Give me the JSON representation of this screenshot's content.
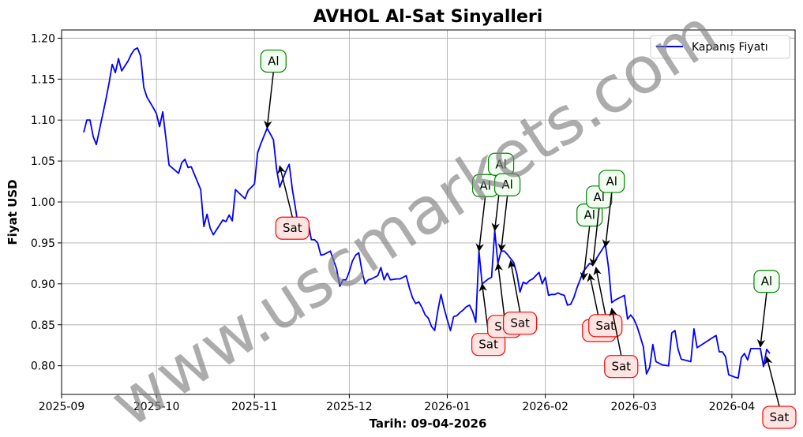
{
  "watermark": "www.uscmarkets.com",
  "chart_data": {
    "type": "line",
    "title": "AVHOL Al-Sat Sinyalleri",
    "xlabel": "Tarih: 09-04-2026",
    "ylabel": "Fiyat USD",
    "xlim": [
      "2025-09-01",
      "2026-04-21"
    ],
    "ylim": [
      0.765,
      1.21
    ],
    "x_ticks": [
      "2025-09",
      "2025-10",
      "2025-11",
      "2025-12",
      "2026-01",
      "2026-02",
      "2026-03",
      "2026-04"
    ],
    "x_tick_dates": [
      "2025-09-01",
      "2025-10-01",
      "2025-11-01",
      "2025-12-01",
      "2026-01-01",
      "2026-02-01",
      "2026-03-01",
      "2026-04-01"
    ],
    "y_ticks": [
      0.8,
      0.85,
      0.9,
      0.95,
      1.0,
      1.05,
      1.1,
      1.15,
      1.2
    ],
    "y_tick_labels": [
      "0.80",
      "0.85",
      "0.90",
      "0.95",
      "1.00",
      "1.05",
      "1.10",
      "1.15",
      "1.20"
    ],
    "grid": true,
    "legend_position": "top-right",
    "series": [
      {
        "name": "Kapanış Fiyatı",
        "color": "#0000ff",
        "points": [
          [
            "2025-09-08",
            1.085
          ],
          [
            "2025-09-09",
            1.1
          ],
          [
            "2025-09-10",
            1.1
          ],
          [
            "2025-09-11",
            1.08
          ],
          [
            "2025-09-12",
            1.07
          ],
          [
            "2025-09-15",
            1.125
          ],
          [
            "2025-09-16",
            1.145
          ],
          [
            "2025-09-17",
            1.168
          ],
          [
            "2025-09-18",
            1.158
          ],
          [
            "2025-09-19",
            1.175
          ],
          [
            "2025-09-20",
            1.16
          ],
          [
            "2025-09-22",
            1.172
          ],
          [
            "2025-09-23",
            1.18
          ],
          [
            "2025-09-24",
            1.186
          ],
          [
            "2025-09-25",
            1.188
          ],
          [
            "2025-09-26",
            1.178
          ],
          [
            "2025-09-27",
            1.14
          ],
          [
            "2025-09-28",
            1.128
          ],
          [
            "2025-09-30",
            1.115
          ],
          [
            "2025-10-01",
            1.108
          ],
          [
            "2025-10-02",
            1.092
          ],
          [
            "2025-10-03",
            1.11
          ],
          [
            "2025-10-04",
            1.078
          ],
          [
            "2025-10-05",
            1.045
          ],
          [
            "2025-10-08",
            1.035
          ],
          [
            "2025-10-09",
            1.048
          ],
          [
            "2025-10-10",
            1.052
          ],
          [
            "2025-10-11",
            1.042
          ],
          [
            "2025-10-12",
            1.043
          ],
          [
            "2025-10-15",
            1.015
          ],
          [
            "2025-10-16",
            0.97
          ],
          [
            "2025-10-17",
            0.985
          ],
          [
            "2025-10-18",
            0.968
          ],
          [
            "2025-10-19",
            0.96
          ],
          [
            "2025-10-21",
            0.972
          ],
          [
            "2025-10-22",
            0.978
          ],
          [
            "2025-10-23",
            0.976
          ],
          [
            "2025-10-24",
            0.984
          ],
          [
            "2025-10-25",
            0.977
          ],
          [
            "2025-10-26",
            1.015
          ],
          [
            "2025-10-29",
            1.004
          ],
          [
            "2025-10-30",
            1.014
          ],
          [
            "2025-11-01",
            1.022
          ],
          [
            "2025-11-02",
            1.06
          ],
          [
            "2025-11-03",
            1.071
          ],
          [
            "2025-11-05",
            1.09
          ],
          [
            "2025-11-07",
            1.076
          ],
          [
            "2025-11-08",
            1.04
          ],
          [
            "2025-11-09",
            1.018
          ],
          [
            "2025-11-11",
            1.038
          ],
          [
            "2025-11-12",
            1.046
          ],
          [
            "2025-11-13",
            1.015
          ],
          [
            "2025-11-14",
            0.992
          ],
          [
            "2025-11-15",
            0.966
          ],
          [
            "2025-11-17",
            0.972
          ],
          [
            "2025-11-18",
            0.975
          ],
          [
            "2025-11-19",
            0.954
          ],
          [
            "2025-11-20",
            0.954
          ],
          [
            "2025-11-21",
            0.95
          ],
          [
            "2025-11-22",
            0.935
          ],
          [
            "2025-11-23",
            0.936
          ],
          [
            "2025-11-24",
            0.938
          ],
          [
            "2025-11-25",
            0.94
          ],
          [
            "2025-11-27",
            0.918
          ],
          [
            "2025-11-28",
            0.897
          ],
          [
            "2025-11-29",
            0.905
          ],
          [
            "2025-11-30",
            0.905
          ],
          [
            "2025-12-01",
            0.915
          ],
          [
            "2025-12-02",
            0.928
          ],
          [
            "2025-12-03",
            0.935
          ],
          [
            "2025-12-04",
            0.938
          ],
          [
            "2025-12-05",
            0.916
          ],
          [
            "2025-12-06",
            0.9
          ],
          [
            "2025-12-07",
            0.905
          ],
          [
            "2025-12-08",
            0.906
          ],
          [
            "2025-12-10",
            0.91
          ],
          [
            "2025-12-11",
            0.92
          ],
          [
            "2025-12-12",
            0.905
          ],
          [
            "2025-12-13",
            0.913
          ],
          [
            "2025-12-14",
            0.905
          ],
          [
            "2025-12-16",
            0.906
          ],
          [
            "2025-12-17",
            0.906
          ],
          [
            "2025-12-19",
            0.91
          ],
          [
            "2025-12-20",
            0.895
          ],
          [
            "2025-12-21",
            0.883
          ],
          [
            "2025-12-22",
            0.876
          ],
          [
            "2025-12-23",
            0.878
          ],
          [
            "2025-12-24",
            0.871
          ],
          [
            "2025-12-25",
            0.862
          ],
          [
            "2025-12-26",
            0.858
          ],
          [
            "2025-12-27",
            0.848
          ],
          [
            "2025-12-28",
            0.843
          ],
          [
            "2025-12-29",
            0.867
          ],
          [
            "2025-12-30",
            0.887
          ],
          [
            "2025-12-31",
            0.87
          ],
          [
            "2026-01-01",
            0.856
          ],
          [
            "2026-01-02",
            0.843
          ],
          [
            "2026-01-03",
            0.86
          ],
          [
            "2026-01-04",
            0.861
          ],
          [
            "2026-01-05",
            0.865
          ],
          [
            "2026-01-06",
            0.868
          ],
          [
            "2026-01-07",
            0.872
          ],
          [
            "2026-01-08",
            0.874
          ],
          [
            "2026-01-09",
            0.866
          ],
          [
            "2026-01-10",
            0.853
          ],
          [
            "2026-01-11",
            0.94
          ],
          [
            "2026-01-12",
            0.9
          ],
          [
            "2026-01-13",
            0.903
          ],
          [
            "2026-01-14",
            0.906
          ],
          [
            "2026-01-15",
            0.908
          ],
          [
            "2026-01-16",
            0.965
          ],
          [
            "2026-01-17",
            0.925
          ],
          [
            "2026-01-18",
            0.94
          ],
          [
            "2026-01-19",
            0.94
          ],
          [
            "2026-01-20",
            0.936
          ],
          [
            "2026-01-21",
            0.931
          ],
          [
            "2026-01-22",
            0.926
          ],
          [
            "2026-01-23",
            0.912
          ],
          [
            "2026-01-24",
            0.89
          ],
          [
            "2026-01-25",
            0.902
          ],
          [
            "2026-01-26",
            0.9
          ],
          [
            "2026-01-27",
            0.904
          ],
          [
            "2026-01-28",
            0.906
          ],
          [
            "2026-01-29",
            0.91
          ],
          [
            "2026-01-30",
            0.914
          ],
          [
            "2026-01-31",
            0.9
          ],
          [
            "2026-02-01",
            0.908
          ],
          [
            "2026-02-02",
            0.886
          ],
          [
            "2026-02-03",
            0.887
          ],
          [
            "2026-02-04",
            0.887
          ],
          [
            "2026-02-05",
            0.889
          ],
          [
            "2026-02-06",
            0.887
          ],
          [
            "2026-02-07",
            0.886
          ],
          [
            "2026-02-08",
            0.874
          ],
          [
            "2026-02-09",
            0.875
          ],
          [
            "2026-02-10",
            0.883
          ],
          [
            "2026-02-11",
            0.895
          ],
          [
            "2026-02-12",
            0.905
          ],
          [
            "2026-02-13",
            0.915
          ],
          [
            "2026-02-14",
            0.92
          ],
          [
            "2026-02-15",
            0.925
          ],
          [
            "2026-02-16",
            0.923
          ],
          [
            "2026-02-17",
            0.93
          ],
          [
            "2026-02-18",
            0.936
          ],
          [
            "2026-02-19",
            0.942
          ],
          [
            "2026-02-20",
            0.948
          ],
          [
            "2026-02-21",
            0.92
          ],
          [
            "2026-02-22",
            0.877
          ],
          [
            "2026-02-23",
            0.88
          ],
          [
            "2026-02-24",
            0.882
          ],
          [
            "2026-02-25",
            0.884
          ],
          [
            "2026-02-26",
            0.886
          ],
          [
            "2026-02-27",
            0.857
          ],
          [
            "2026-02-28",
            0.862
          ],
          [
            "2026-03-01",
            0.857
          ],
          [
            "2026-03-02",
            0.848
          ],
          [
            "2026-03-03",
            0.836
          ],
          [
            "2026-03-04",
            0.823
          ],
          [
            "2026-03-05",
            0.79
          ],
          [
            "2026-03-06",
            0.798
          ],
          [
            "2026-03-07",
            0.826
          ],
          [
            "2026-03-08",
            0.805
          ],
          [
            "2026-03-10",
            0.801
          ],
          [
            "2026-03-12",
            0.8
          ],
          [
            "2026-03-13",
            0.84
          ],
          [
            "2026-03-14",
            0.843
          ],
          [
            "2026-03-15",
            0.82
          ],
          [
            "2026-03-16",
            0.808
          ],
          [
            "2026-03-18",
            0.806
          ],
          [
            "2026-03-19",
            0.805
          ],
          [
            "2026-03-20",
            0.845
          ],
          [
            "2026-03-21",
            0.822
          ],
          [
            "2026-03-23",
            0.827
          ],
          [
            "2026-03-25",
            0.832
          ],
          [
            "2026-03-27",
            0.837
          ],
          [
            "2026-03-28",
            0.817
          ],
          [
            "2026-03-29",
            0.817
          ],
          [
            "2026-03-30",
            0.811
          ],
          [
            "2026-03-31",
            0.789
          ],
          [
            "2026-04-02",
            0.786
          ],
          [
            "2026-04-03",
            0.785
          ],
          [
            "2026-04-04",
            0.81
          ],
          [
            "2026-04-05",
            0.815
          ],
          [
            "2026-04-06",
            0.807
          ],
          [
            "2026-04-07",
            0.821
          ],
          [
            "2026-04-08",
            0.821
          ],
          [
            "2026-04-09",
            0.821
          ],
          [
            "2026-04-10",
            0.821
          ],
          [
            "2026-04-11",
            0.799
          ],
          [
            "2026-04-12",
            0.82
          ],
          [
            "2026-04-13",
            0.815
          ]
        ]
      }
    ],
    "annotations": [
      {
        "label": "Al",
        "type": "buy",
        "point": [
          "2025-11-05",
          1.09
        ],
        "label_pos": [
          "2025-11-07",
          1.172
        ]
      },
      {
        "label": "Sat",
        "type": "sell",
        "point": [
          "2025-11-09",
          1.044
        ],
        "label_pos": [
          "2025-11-13",
          0.968
        ]
      },
      {
        "label": "Al",
        "type": "buy",
        "point": [
          "2026-01-11",
          0.94
        ],
        "label_pos": [
          "2026-01-13",
          1.02
        ]
      },
      {
        "label": "Al",
        "type": "buy",
        "point": [
          "2026-01-16",
          0.965
        ],
        "label_pos": [
          "2026-01-18",
          1.046
        ]
      },
      {
        "label": "Al",
        "type": "buy",
        "point": [
          "2026-01-18",
          0.94
        ],
        "label_pos": [
          "2026-01-20",
          1.021
        ]
      },
      {
        "label": "Sat",
        "type": "sell",
        "point": [
          "2026-01-12",
          0.9
        ],
        "label_pos": [
          "2026-01-14",
          0.826
        ]
      },
      {
        "label": "Sat",
        "type": "sell",
        "point": [
          "2026-01-17",
          0.925
        ],
        "label_pos": [
          "2026-01-19",
          0.848
        ]
      },
      {
        "label": "Sat",
        "type": "sell",
        "point": [
          "2026-01-21",
          0.928
        ],
        "label_pos": [
          "2026-01-24",
          0.852
        ]
      },
      {
        "label": "Al",
        "type": "buy",
        "point": [
          "2026-02-13",
          0.905
        ],
        "label_pos": [
          "2026-02-15",
          0.984
        ]
      },
      {
        "label": "Al",
        "type": "buy",
        "point": [
          "2026-02-16",
          0.922
        ],
        "label_pos": [
          "2026-02-18",
          1.006
        ]
      },
      {
        "label": "Al",
        "type": "buy",
        "point": [
          "2026-02-20",
          0.945
        ],
        "label_pos": [
          "2026-02-22",
          1.025
        ]
      },
      {
        "label": "Sat",
        "type": "sell",
        "point": [
          "2026-02-15",
          0.912
        ],
        "label_pos": [
          "2026-02-18",
          0.843
        ]
      },
      {
        "label": "Sat",
        "type": "sell",
        "point": [
          "2026-02-17",
          0.92
        ],
        "label_pos": [
          "2026-02-20",
          0.849
        ]
      },
      {
        "label": "Sat",
        "type": "sell",
        "point": [
          "2026-02-22",
          0.87
        ],
        "label_pos": [
          "2026-02-25",
          0.799
        ]
      },
      {
        "label": "Al",
        "type": "buy",
        "point": [
          "2026-04-10",
          0.823
        ],
        "label_pos": [
          "2026-04-12",
          0.903
        ]
      },
      {
        "label": "Sat",
        "type": "sell",
        "point": [
          "2026-04-12",
          0.811
        ],
        "label_pos": [
          "2026-04-16",
          0.737
        ]
      }
    ]
  },
  "annotation_colors": {
    "buy_border": "#008000",
    "buy_fill": "#f0fff0",
    "sell_border": "#ff0000",
    "sell_fill": "#ffe4e1"
  }
}
